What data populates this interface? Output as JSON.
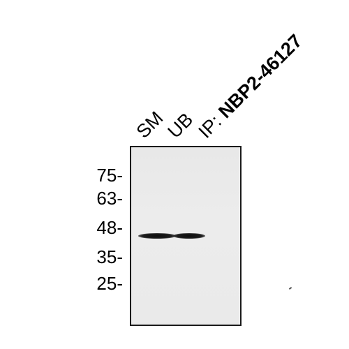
{
  "lanes": {
    "sm": "SM",
    "ub": "UB"
  },
  "ip": {
    "prefix": "IP: ",
    "antibody": "NBP2-46127"
  },
  "markers": [
    {
      "label": "75-",
      "kda": 75
    },
    {
      "label": "63-",
      "kda": 63
    },
    {
      "label": "48-",
      "kda": 48
    },
    {
      "label": "35-",
      "kda": 35
    },
    {
      "label": "25-",
      "kda": 25
    }
  ],
  "bands": [
    {
      "lane": "SM",
      "kda_approx": 43
    },
    {
      "lane": "UB",
      "kda_approx": 43
    }
  ]
}
